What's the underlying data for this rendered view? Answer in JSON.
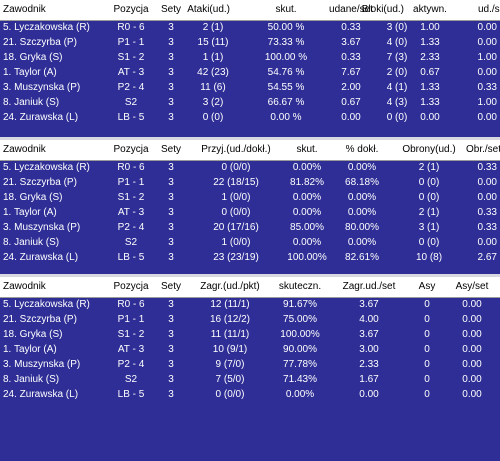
{
  "table1": {
    "headers": [
      "Zawodnik",
      "Pozycja",
      "Sety",
      "Ataki(ud.)",
      "skut.",
      "udane/set",
      "Bloki(ud.)",
      "aktywn.",
      "ud./set"
    ],
    "rows": [
      [
        "5. Lyczakowska (R)",
        "R0 - 6",
        "3",
        "2 (1)",
        "50.00 %",
        "0.33",
        "3 (0)",
        "1.00",
        "0.00"
      ],
      [
        "21. Szczyrba (P)",
        "P1 - 1",
        "3",
        "15 (11)",
        "73.33 %",
        "3.67",
        "4 (0)",
        "1.33",
        "0.00"
      ],
      [
        "18. Gryka (S)",
        "S1 - 2",
        "3",
        "1 (1)",
        "100.00 %",
        "0.33",
        "7 (3)",
        "2.33",
        "1.00"
      ],
      [
        "1. Taylor (A)",
        "AT - 3",
        "3",
        "42 (23)",
        "54.76 %",
        "7.67",
        "2 (0)",
        "0.67",
        "0.00"
      ],
      [
        "3. Muszynska (P)",
        "P2 - 4",
        "3",
        "11 (6)",
        "54.55 %",
        "2.00",
        "4 (1)",
        "1.33",
        "0.33"
      ],
      [
        "8. Janiuk (S)",
        "S2",
        "3",
        "3 (2)",
        "66.67 %",
        "0.67",
        "4 (3)",
        "1.33",
        "1.00"
      ],
      [
        "24. Zurawska (L)",
        "LB - 5",
        "3",
        "0 (0)",
        "0.00 %",
        "0.00",
        "0 (0)",
        "0.00",
        "0.00"
      ]
    ]
  },
  "table2": {
    "headers": [
      "Zawodnik",
      "Pozycja",
      "Sety",
      "Przyj.(ud./dokł.)",
      "skut.",
      "% dokł.",
      "Obrony(ud.)",
      "Obr./set"
    ],
    "rows": [
      [
        "5. Lyczakowska (R)",
        "R0 - 6",
        "3",
        "0 (0/0)",
        "0.00%",
        "0.00%",
        "2 (1)",
        "0.33"
      ],
      [
        "21. Szczyrba (P)",
        "P1 - 1",
        "3",
        "22 (18/15)",
        "81.82%",
        "68.18%",
        "0 (0)",
        "0.00"
      ],
      [
        "18. Gryka (S)",
        "S1 - 2",
        "3",
        "1 (0/0)",
        "0.00%",
        "0.00%",
        "0 (0)",
        "0.00"
      ],
      [
        "1. Taylor (A)",
        "AT - 3",
        "3",
        "0 (0/0)",
        "0.00%",
        "0.00%",
        "2 (1)",
        "0.33"
      ],
      [
        "3. Muszynska (P)",
        "P2 - 4",
        "3",
        "20 (17/16)",
        "85.00%",
        "80.00%",
        "3 (1)",
        "0.33"
      ],
      [
        "8. Janiuk (S)",
        "S2",
        "3",
        "1 (0/0)",
        "0.00%",
        "0.00%",
        "0 (0)",
        "0.00"
      ],
      [
        "24. Zurawska (L)",
        "LB - 5",
        "3",
        "23 (23/19)",
        "100.00%",
        "82.61%",
        "10 (8)",
        "2.67"
      ]
    ]
  },
  "table3": {
    "headers": [
      "Zawodnik",
      "Pozycja",
      "Sety",
      "Zagr.(ud./pkt)",
      "skuteczn.",
      "Zagr.ud./set",
      "Asy",
      "Asy/set"
    ],
    "rows": [
      [
        "5. Lyczakowska (R)",
        "R0 - 6",
        "3",
        "12 (11/1)",
        "91.67%",
        "3.67",
        "0",
        "0.00"
      ],
      [
        "21. Szczyrba (P)",
        "P1 - 1",
        "3",
        "16 (12/2)",
        "75.00%",
        "4.00",
        "0",
        "0.00"
      ],
      [
        "18. Gryka (S)",
        "S1 - 2",
        "3",
        "11 (11/1)",
        "100.00%",
        "3.67",
        "0",
        "0.00"
      ],
      [
        "1. Taylor (A)",
        "AT - 3",
        "3",
        "10 (9/1)",
        "90.00%",
        "3.00",
        "0",
        "0.00"
      ],
      [
        "3. Muszynska (P)",
        "P2 - 4",
        "3",
        "9 (7/0)",
        "77.78%",
        "2.33",
        "0",
        "0.00"
      ],
      [
        "8. Janiuk (S)",
        "S2",
        "3",
        "7 (5/0)",
        "71.43%",
        "1.67",
        "0",
        "0.00"
      ],
      [
        "24. Zurawska (L)",
        "LB - 5",
        "3",
        "0 (0/0)",
        "0.00%",
        "0.00",
        "0",
        "0.00"
      ]
    ]
  }
}
